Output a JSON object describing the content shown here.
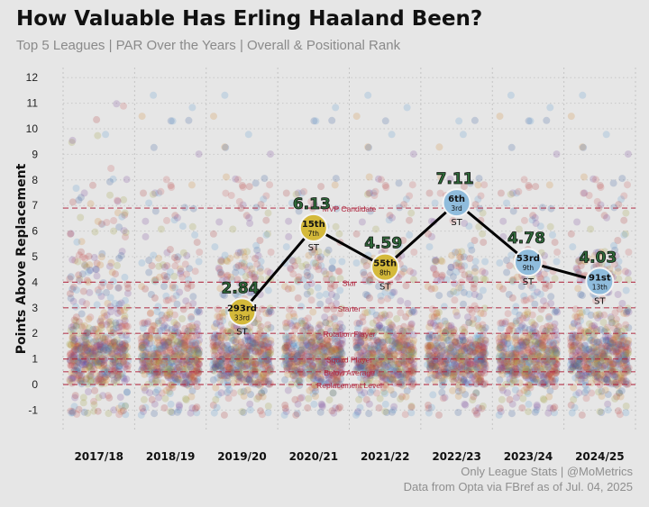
{
  "header": {
    "title": "How Valuable Has Erling Haaland Been?",
    "subtitle": "Top 5 Leagues | PAR Over the Years | Overall & Positional Rank"
  },
  "footer": {
    "credit": "Only League Stats | @MoMetrics",
    "source": "Data from Opta via FBref as of Jul. 04, 2025"
  },
  "chart_data": {
    "type": "scatter",
    "title": "How Valuable Has Erling Haaland Been?",
    "subtitle": "Top 5 Leagues | PAR Over the Years | Overall & Positional Rank",
    "ylabel": "Points Above Replacement",
    "xlabel": "",
    "ylim": [
      -1.8,
      12.6
    ],
    "yticks": [
      -1,
      0,
      1,
      2,
      3,
      4,
      5,
      6,
      7,
      8,
      9,
      10,
      11,
      12
    ],
    "categories": [
      "2017/18",
      "2018/19",
      "2019/20",
      "2020/21",
      "2021/22",
      "2022/23",
      "2023/24",
      "2024/25"
    ],
    "grid": true,
    "reference_lines": [
      {
        "label": "MVP Candidate",
        "value": 6.9
      },
      {
        "label": "Star",
        "value": 4.0
      },
      {
        "label": "Starter",
        "value": 3.0
      },
      {
        "label": "Rotation Player",
        "value": 2.0
      },
      {
        "label": "Squad Player",
        "value": 1.0
      },
      {
        "label": "Below Average",
        "value": 0.5
      },
      {
        "label": "Replacement Level",
        "value": 0.0
      }
    ],
    "highlight_series": {
      "name": "Erling Haaland",
      "points": [
        {
          "season": "2019/20",
          "value": 2.84,
          "overall_rank": "293rd",
          "position_rank": "33rd",
          "position": "ST",
          "color": "#d4b93a"
        },
        {
          "season": "2020/21",
          "value": 6.13,
          "overall_rank": "15th",
          "position_rank": "7th",
          "position": "ST",
          "color": "#d4b93a"
        },
        {
          "season": "2021/22",
          "value": 4.59,
          "overall_rank": "55th",
          "position_rank": "8th",
          "position": "ST",
          "color": "#d4b93a"
        },
        {
          "season": "2022/23",
          "value": 7.11,
          "overall_rank": "6th",
          "position_rank": "3rd",
          "position": "ST",
          "color": "#8fbcdc"
        },
        {
          "season": "2023/24",
          "value": 4.78,
          "overall_rank": "53rd",
          "position_rank": "9th",
          "position": "ST",
          "color": "#8fbcdc"
        },
        {
          "season": "2024/25",
          "value": 4.03,
          "overall_rank": "91st",
          "position_rank": "13th",
          "position": "ST",
          "color": "#8fbcdc"
        }
      ]
    },
    "background_players": {
      "description_colors": [
        "#b03a3a",
        "#3a5fa0",
        "#d08a30",
        "#7a4a9a",
        "#c85a5a",
        "#5a9ad0",
        "#a0a040"
      ]
    },
    "colors": {
      "reference_line": "#b02840",
      "reference_label": "#b02840",
      "value_label_fill": "#2f6b3a",
      "connector": "#000000"
    }
  }
}
